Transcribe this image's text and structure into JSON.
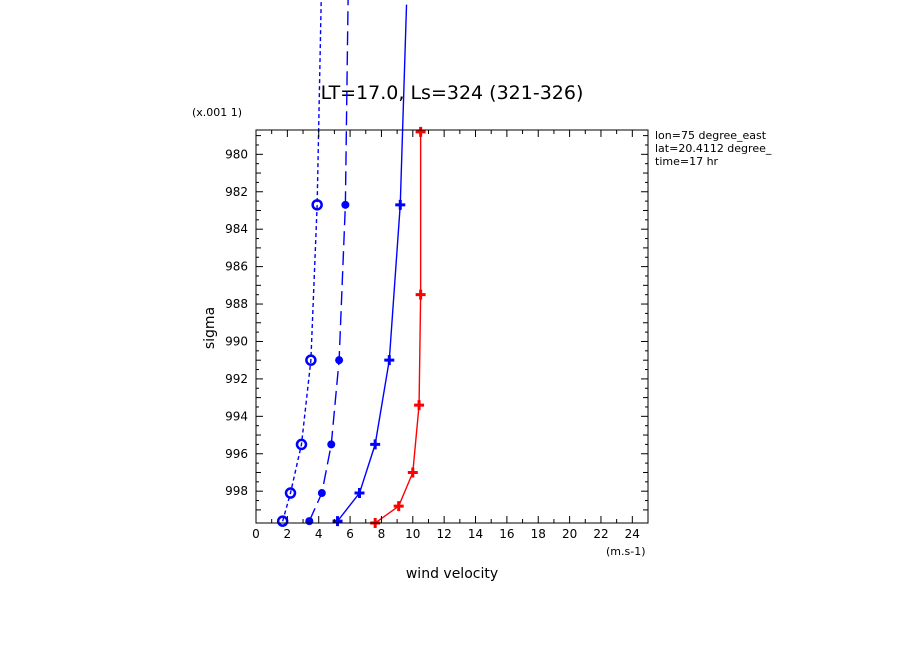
{
  "chart_data": {
    "type": "line",
    "title": "LT=17.0, Ls=324 (321-326)",
    "xlabel": "wind velocity",
    "ylabel": "sigma",
    "x_unit": "(m.s-1)",
    "y_unit": "(x.001 1)",
    "xlim": [
      0,
      25
    ],
    "ylim": [
      999.7,
      978.7
    ],
    "y_inverted": true,
    "x_ticks": [
      0,
      2,
      4,
      6,
      8,
      10,
      12,
      14,
      16,
      18,
      20,
      22,
      24
    ],
    "y_ticks": [
      980,
      982,
      984,
      986,
      988,
      990,
      992,
      994,
      996,
      998
    ],
    "info": [
      "lon=75 degree_east",
      "lat=20.4112 degree_",
      "time=17 hr"
    ],
    "series": [
      {
        "color": "#0000ff",
        "dash": "4,3",
        "marker": "circle",
        "points": [
          [
            1.7,
            999.6
          ],
          [
            2.2,
            998.1
          ],
          [
            2.9,
            995.5
          ],
          [
            3.5,
            991.0
          ],
          [
            3.9,
            982.7
          ],
          [
            4.2,
            970.0
          ]
        ]
      },
      {
        "color": "#0000ff",
        "dash": "14,6",
        "marker": "dot",
        "points": [
          [
            3.4,
            999.6
          ],
          [
            4.2,
            998.1
          ],
          [
            4.8,
            995.5
          ],
          [
            5.3,
            991.0
          ],
          [
            5.7,
            982.7
          ],
          [
            5.9,
            970.0
          ]
        ]
      },
      {
        "color": "#0000ff",
        "dash": "",
        "marker": "plus",
        "points": [
          [
            5.2,
            999.6
          ],
          [
            6.6,
            998.1
          ],
          [
            7.6,
            995.5
          ],
          [
            8.5,
            991.0
          ],
          [
            9.2,
            982.7
          ],
          [
            9.6,
            972.0
          ]
        ]
      },
      {
        "color": "#ff0000",
        "dash": "",
        "marker": "plus",
        "points": [
          [
            7.6,
            999.7
          ],
          [
            9.1,
            998.8
          ],
          [
            10.0,
            997.0
          ],
          [
            10.4,
            993.4
          ],
          [
            10.5,
            987.5
          ],
          [
            10.5,
            978.8
          ]
        ]
      }
    ]
  }
}
